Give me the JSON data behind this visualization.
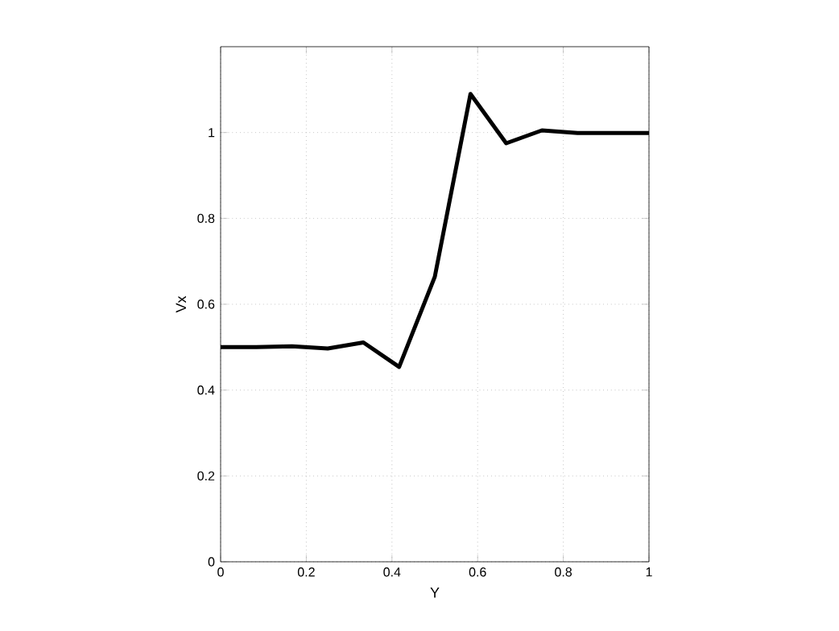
{
  "chart_data": {
    "type": "line",
    "xlabel": "Y",
    "ylabel": "Vx",
    "x": [
      0,
      0.0833,
      0.1667,
      0.25,
      0.3333,
      0.4167,
      0.5,
      0.5833,
      0.6667,
      0.75,
      0.8333,
      0.9167,
      1
    ],
    "series": [
      {
        "color": "#000000",
        "values": [
          0.5,
          0.5,
          0.502,
          0.497,
          0.511,
          0.454,
          0.664,
          1.09,
          0.975,
          1.005,
          0.999,
          0.999,
          0.999
        ]
      }
    ],
    "xlim": [
      0,
      1
    ],
    "ylim": [
      0,
      1.2
    ],
    "xticks": [
      0,
      0.2,
      0.4,
      0.6,
      0.8,
      1
    ],
    "yticks": [
      0,
      0.2,
      0.4,
      0.6,
      0.8,
      1
    ],
    "grid": true,
    "marker": "none",
    "line_style": "solid"
  }
}
